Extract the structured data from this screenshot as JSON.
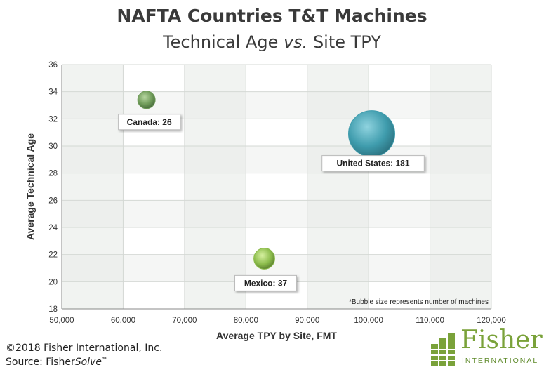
{
  "header": {
    "title": "NAFTA Countries T&T Machines",
    "subtitle_a": "Technical Age ",
    "subtitle_vs": "vs.",
    "subtitle_b": " Site TPY"
  },
  "chart_data": {
    "type": "scatter",
    "subtype": "bubble",
    "xlabel": "Average TPY by Site, FMT",
    "ylabel": "Average Technical Age",
    "xlim": [
      50000,
      120000
    ],
    "ylim": [
      18,
      36
    ],
    "x_ticks": [
      "50,000",
      "60,000",
      "70,000",
      "80,000",
      "90,000",
      "100,000",
      "110,000",
      "120,000"
    ],
    "y_ticks": [
      "18",
      "20",
      "22",
      "24",
      "26",
      "28",
      "30",
      "32",
      "34",
      "36"
    ],
    "grid": true,
    "note": "*Bubble size represents number of machines",
    "points": [
      {
        "label": "Canada: 26",
        "x": 63800,
        "y": 33.4,
        "size": 26,
        "color": "#6e9a58"
      },
      {
        "label": "Mexico: 37",
        "x": 83000,
        "y": 21.7,
        "size": 37,
        "color": "#8cbc4c"
      },
      {
        "label": "United States: 181",
        "x": 100500,
        "y": 30.9,
        "size": 181,
        "color": "#3f9cad"
      }
    ]
  },
  "footer": {
    "copyright": "©2018 Fisher International, Inc.",
    "source_a": "Source: Fisher",
    "source_b": "Solve",
    "source_tm": "™",
    "logo_word": "Fisher",
    "logo_sub": "INTERNATIONAL"
  }
}
